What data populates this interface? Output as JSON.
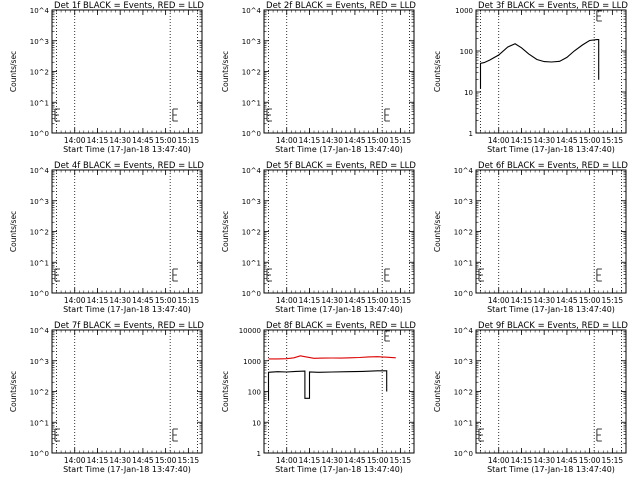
{
  "chart_data": [
    {
      "type": "line",
      "title": "Det 1f BLACK = Events, RED = LLD",
      "xlabel": "Start Time (17-Jan-18 13:47:40)",
      "ylabel": "Counts/sec",
      "xlim": [
        13.75,
        15.4
      ],
      "ylim": [
        1,
        10000
      ],
      "y_scale": "log",
      "x_ticks": [
        "14:00",
        "14:15",
        "14:30",
        "14:45",
        "15:00",
        "15:15"
      ],
      "y_ticks": [
        "10^0",
        "10^1",
        "10^2",
        "10^3",
        "10^4"
      ],
      "dotted_lines_x": [
        13.8,
        14.0,
        15.05,
        15.35
      ],
      "series": [
        {
          "color": "#000000",
          "x": [],
          "y": []
        },
        {
          "color": "#dd0000",
          "x": [],
          "y": []
        }
      ]
    },
    {
      "type": "line",
      "title": "Det 2f BLACK = Events, RED = LLD",
      "xlabel": "Start Time (17-Jan-18 13:47:40)",
      "ylabel": "Counts/sec",
      "xlim": [
        13.75,
        15.4
      ],
      "ylim": [
        1,
        10000
      ],
      "y_scale": "log",
      "x_ticks": [
        "14:00",
        "14:15",
        "14:30",
        "14:45",
        "15:00",
        "15:15"
      ],
      "y_ticks": [
        "10^0",
        "10^1",
        "10^2",
        "10^3",
        "10^4"
      ],
      "dotted_lines_x": [
        13.8,
        14.0,
        15.05,
        15.35
      ],
      "series": [
        {
          "color": "#000000",
          "x": [],
          "y": []
        },
        {
          "color": "#dd0000",
          "x": [],
          "y": []
        }
      ]
    },
    {
      "type": "line",
      "title": "Det 3f BLACK = Events, RED = LLD",
      "xlabel": "Start Time (17-Jan-18 13:47:40)",
      "ylabel": "Counts/sec",
      "xlim": [
        13.75,
        15.4
      ],
      "ylim": [
        1,
        1000
      ],
      "y_scale": "log",
      "x_ticks": [
        "14:00",
        "14:15",
        "14:30",
        "14:45",
        "15:00",
        "15:15"
      ],
      "y_ticks": [
        "1",
        "10",
        "100",
        "1000"
      ],
      "dotted_lines_x": [
        13.8,
        14.0,
        15.05,
        15.35
      ],
      "series": [
        {
          "color": "#000000",
          "x": [
            13.8,
            13.8,
            13.84,
            13.9,
            14.0,
            14.1,
            14.18,
            14.25,
            14.33,
            14.42,
            14.5,
            14.58,
            14.67,
            14.75,
            14.83,
            14.92,
            15.0,
            15.08,
            15.1,
            15.1
          ],
          "y": [
            12,
            50,
            52,
            60,
            80,
            125,
            150,
            120,
            85,
            62,
            55,
            54,
            56,
            70,
            100,
            140,
            180,
            190,
            190,
            20
          ]
        },
        {
          "color": "#dd0000",
          "x": [],
          "y": []
        }
      ]
    },
    {
      "type": "line",
      "title": "Det 4f BLACK = Events, RED = LLD",
      "xlabel": "Start Time (17-Jan-18 13:47:40)",
      "ylabel": "Counts/sec",
      "xlim": [
        13.75,
        15.4
      ],
      "ylim": [
        1,
        10000
      ],
      "y_scale": "log",
      "x_ticks": [
        "14:00",
        "14:15",
        "14:30",
        "14:45",
        "15:00",
        "15:15"
      ],
      "y_ticks": [
        "10^0",
        "10^1",
        "10^2",
        "10^3",
        "10^4"
      ],
      "dotted_lines_x": [
        13.8,
        14.0,
        15.05,
        15.35
      ],
      "series": [
        {
          "color": "#000000",
          "x": [],
          "y": []
        },
        {
          "color": "#dd0000",
          "x": [],
          "y": []
        }
      ]
    },
    {
      "type": "line",
      "title": "Det 5f BLACK = Events, RED = LLD",
      "xlabel": "Start Time (17-Jan-18 13:47:40)",
      "ylabel": "Counts/sec",
      "xlim": [
        13.75,
        15.4
      ],
      "ylim": [
        1,
        10000
      ],
      "y_scale": "log",
      "x_ticks": [
        "14:00",
        "14:15",
        "14:30",
        "14:45",
        "15:00",
        "15:15"
      ],
      "y_ticks": [
        "10^0",
        "10^1",
        "10^2",
        "10^3",
        "10^4"
      ],
      "dotted_lines_x": [
        13.8,
        14.0,
        15.05,
        15.35
      ],
      "series": [
        {
          "color": "#000000",
          "x": [],
          "y": []
        },
        {
          "color": "#dd0000",
          "x": [],
          "y": []
        }
      ]
    },
    {
      "type": "line",
      "title": "Det 6f BLACK = Events, RED = LLD",
      "xlabel": "Start Time (17-Jan-18 13:47:40)",
      "ylabel": "Counts/sec",
      "xlim": [
        13.75,
        15.4
      ],
      "ylim": [
        1,
        10000
      ],
      "y_scale": "log",
      "x_ticks": [
        "14:00",
        "14:15",
        "14:30",
        "14:45",
        "15:00",
        "15:15"
      ],
      "y_ticks": [
        "10^0",
        "10^1",
        "10^2",
        "10^3",
        "10^4"
      ],
      "dotted_lines_x": [
        13.8,
        14.0,
        15.05,
        15.35
      ],
      "series": [
        {
          "color": "#000000",
          "x": [],
          "y": []
        },
        {
          "color": "#dd0000",
          "x": [],
          "y": []
        }
      ]
    },
    {
      "type": "line",
      "title": "Det 7f BLACK = Events, RED = LLD",
      "xlabel": "Start Time (17-Jan-18 13:47:40)",
      "ylabel": "Counts/sec",
      "xlim": [
        13.75,
        15.4
      ],
      "ylim": [
        1,
        10000
      ],
      "y_scale": "log",
      "x_ticks": [
        "14:00",
        "14:15",
        "14:30",
        "14:45",
        "15:00",
        "15:15"
      ],
      "y_ticks": [
        "10^0",
        "10^1",
        "10^2",
        "10^3",
        "10^4"
      ],
      "dotted_lines_x": [
        13.8,
        14.0,
        15.05,
        15.35
      ],
      "series": [
        {
          "color": "#000000",
          "x": [],
          "y": []
        },
        {
          "color": "#dd0000",
          "x": [],
          "y": []
        }
      ]
    },
    {
      "type": "line",
      "title": "Det 8f BLACK = Events, RED = LLD",
      "xlabel": "Start Time (17-Jan-18 13:47:40)",
      "ylabel": "Counts/sec",
      "xlim": [
        13.75,
        15.4
      ],
      "ylim": [
        1,
        10000
      ],
      "y_scale": "log",
      "x_ticks": [
        "14:00",
        "14:15",
        "14:30",
        "14:45",
        "15:00",
        "15:15"
      ],
      "y_ticks": [
        "1",
        "10",
        "100",
        "1000",
        "10000"
      ],
      "dotted_lines_x": [
        13.8,
        14.0,
        15.05,
        15.35
      ],
      "series": [
        {
          "color": "#000000",
          "x": [
            13.8,
            13.8,
            13.9,
            14.0,
            14.1,
            14.2,
            14.2,
            14.25,
            14.25,
            14.35,
            14.5,
            14.67,
            14.83,
            15.0,
            15.1,
            15.1
          ],
          "y": [
            50,
            420,
            440,
            430,
            450,
            460,
            60,
            60,
            430,
            420,
            430,
            440,
            450,
            470,
            470,
            100
          ]
        },
        {
          "color": "#dd0000",
          "x": [
            13.8,
            13.9,
            14.0,
            14.08,
            14.15,
            14.2,
            14.3,
            14.4,
            14.5,
            14.6,
            14.7,
            14.8,
            14.9,
            15.0,
            15.1,
            15.2
          ],
          "y": [
            1150,
            1150,
            1170,
            1250,
            1450,
            1350,
            1200,
            1220,
            1230,
            1220,
            1250,
            1280,
            1330,
            1350,
            1300,
            1250
          ]
        }
      ]
    },
    {
      "type": "line",
      "title": "Det 9f BLACK = Events, RED = LLD",
      "xlabel": "Start Time (17-Jan-18 13:47:40)",
      "ylabel": "Counts/sec",
      "xlim": [
        13.75,
        15.4
      ],
      "ylim": [
        1,
        10000
      ],
      "y_scale": "log",
      "x_ticks": [
        "14:00",
        "14:15",
        "14:30",
        "14:45",
        "15:00",
        "15:15"
      ],
      "y_ticks": [
        "10^0",
        "10^1",
        "10^2",
        "10^3",
        "10^4"
      ],
      "dotted_lines_x": [
        13.8,
        14.0,
        15.05,
        15.35
      ],
      "series": [
        {
          "color": "#000000",
          "x": [],
          "y": []
        },
        {
          "color": "#dd0000",
          "x": [],
          "y": []
        }
      ]
    }
  ]
}
